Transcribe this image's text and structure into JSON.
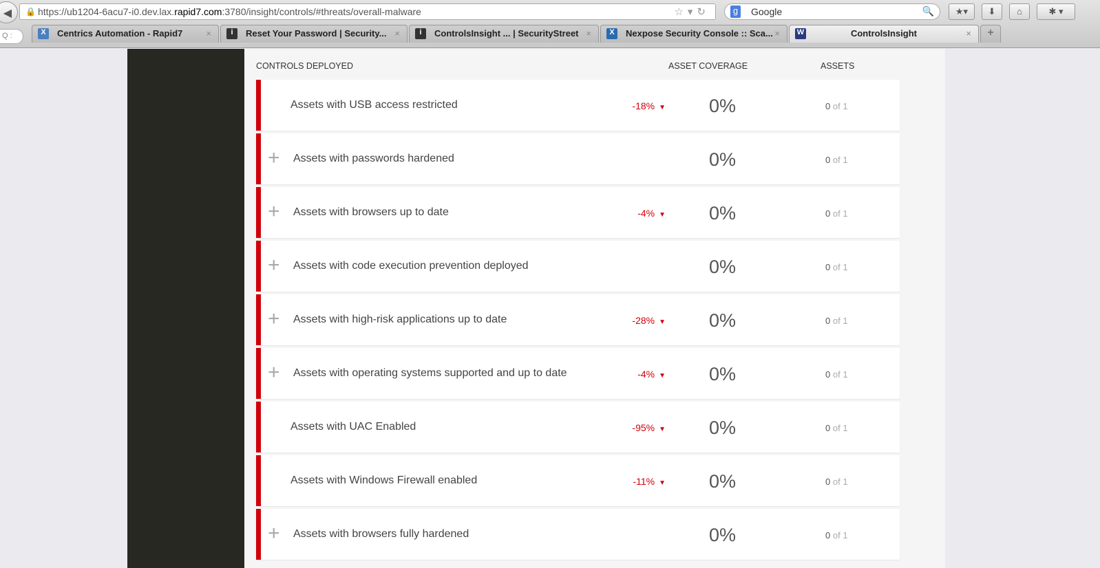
{
  "browser": {
    "url_prefix": "https://ub1204-6acu7-i0.dev.lax.",
    "url_domain": "rapid7.com",
    "url_suffix": ":3780/insight/controls/#threats/overall-malware",
    "search_placeholder": "Google",
    "tabs": [
      {
        "title": "Centrics Automation - Rapid7",
        "icon": "jira-icon"
      },
      {
        "title": "Reset Your Password | Security...",
        "icon": "info-icon"
      },
      {
        "title": "ControlsInsight ... | SecurityStreet",
        "icon": "info-icon"
      },
      {
        "title": "Nexpose Security Console :: Sca...",
        "icon": "nexpose-icon"
      },
      {
        "title": "ControlsInsight",
        "icon": "controlsinsight-icon",
        "active": true
      }
    ]
  },
  "table": {
    "headers": {
      "controls": "CONTROLS DEPLOYED",
      "coverage": "ASSET COVERAGE",
      "assets": "ASSETS"
    },
    "accent": "#d0000a",
    "rows": [
      {
        "name": "Assets with USB access restricted",
        "expandable": false,
        "change": "-18%",
        "coverage": "0%",
        "count": "0",
        "of": "of 1"
      },
      {
        "name": "Assets with passwords hardened",
        "expandable": true,
        "change": "",
        "coverage": "0%",
        "count": "0",
        "of": "of 1"
      },
      {
        "name": "Assets with browsers up to date",
        "expandable": true,
        "change": "-4%",
        "coverage": "0%",
        "count": "0",
        "of": "of 1"
      },
      {
        "name": "Assets with code execution prevention deployed",
        "expandable": true,
        "change": "",
        "coverage": "0%",
        "count": "0",
        "of": "of 1"
      },
      {
        "name": "Assets with high-risk applications up to date",
        "expandable": true,
        "change": "-28%",
        "coverage": "0%",
        "count": "0",
        "of": "of 1"
      },
      {
        "name": "Assets with operating systems supported and up to date",
        "expandable": true,
        "change": "-4%",
        "coverage": "0%",
        "count": "0",
        "of": "of 1"
      },
      {
        "name": "Assets with UAC Enabled",
        "expandable": false,
        "change": "-95%",
        "coverage": "0%",
        "count": "0",
        "of": "of 1"
      },
      {
        "name": "Assets with Windows Firewall enabled",
        "expandable": false,
        "change": "-11%",
        "coverage": "0%",
        "count": "0",
        "of": "of 1"
      },
      {
        "name": "Assets with browsers fully hardened",
        "expandable": true,
        "change": "",
        "coverage": "0%",
        "count": "0",
        "of": "of 1"
      }
    ]
  }
}
